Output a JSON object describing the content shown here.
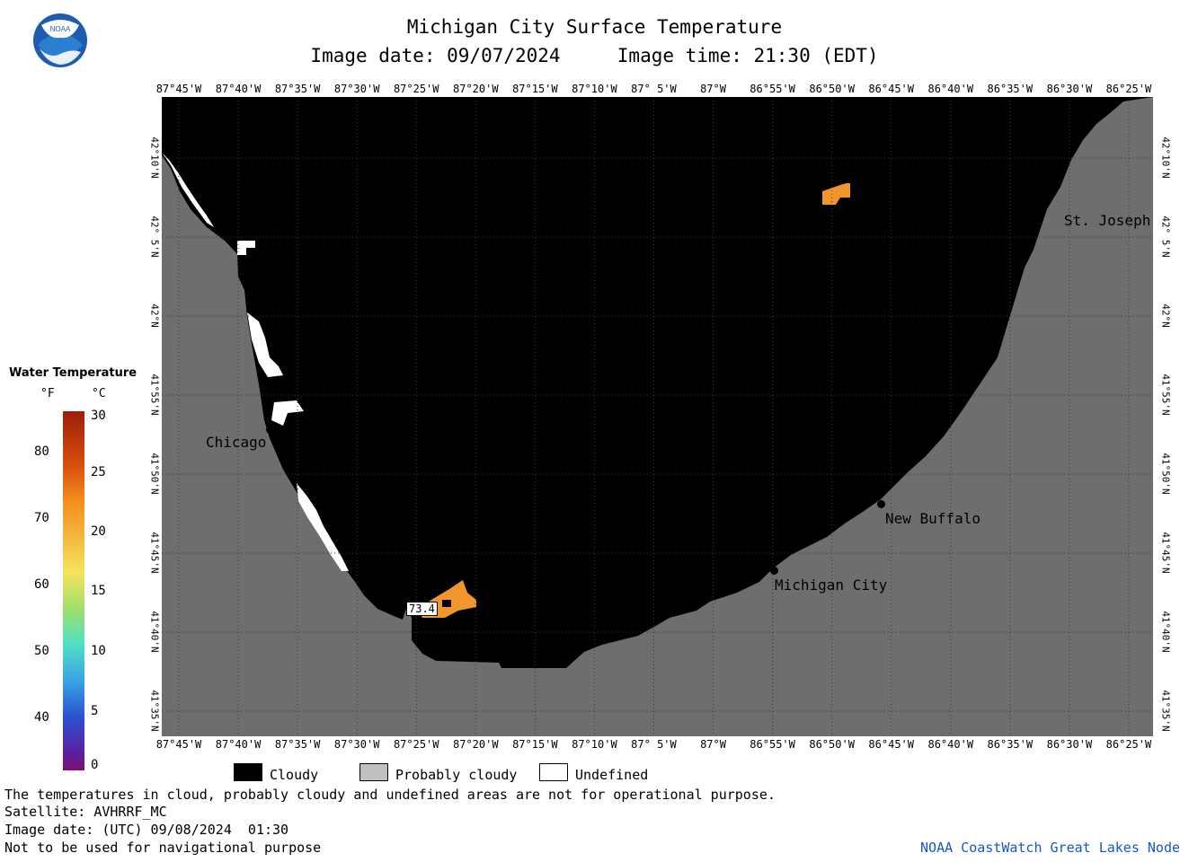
{
  "header": {
    "title": "Michigan City Surface Temperature",
    "subtitle": "Image date: 09/07/2024     Image time: 21:30 (EDT)"
  },
  "logo": {
    "text": "NOAA"
  },
  "map": {
    "lon_labels": [
      "87°45'W",
      "87°40'W",
      "87°35'W",
      "87°30'W",
      "87°25'W",
      "87°20'W",
      "87°15'W",
      "87°10'W",
      "87° 5'W",
      "87°W",
      "86°55'W",
      "86°50'W",
      "86°45'W",
      "86°40'W",
      "86°35'W",
      "86°30'W",
      "86°25'W"
    ],
    "lat_labels": [
      "42°10'N",
      "42° 5'N",
      "42°N",
      "41°55'N",
      "41°50'N",
      "41°45'N",
      "41°40'N",
      "41°35'N"
    ],
    "cities": [
      {
        "name": "Chicago"
      },
      {
        "name": "St. Joseph"
      },
      {
        "name": "New Buffalo"
      },
      {
        "name": "Michigan City"
      }
    ],
    "point_value": "73.4",
    "colors": {
      "cloudy": "#000000",
      "land": "#6e6e6e",
      "undefined": "#ffffff",
      "warm_water": "#f0962c"
    }
  },
  "colorbar": {
    "title": "Water Temperature",
    "unit_f": "°F",
    "unit_c": "°C",
    "f_ticks": [
      "80",
      "70",
      "60",
      "50",
      "40"
    ],
    "c_ticks": [
      "30",
      "25",
      "20",
      "15",
      "10",
      "5",
      "0"
    ]
  },
  "legend": {
    "items": [
      {
        "label": "Cloudy",
        "color": "#000000"
      },
      {
        "label": "Probably cloudy",
        "color": "#c0c0c0"
      },
      {
        "label": "Undefined",
        "color": "#ffffff"
      }
    ]
  },
  "footer": {
    "line1": "The temperatures in cloud, probably cloudy and undefined areas are not for operational purpose.",
    "line2": "Satellite: AVHRRF_MC",
    "line3": "Image date: (UTC) 09/08/2024  01:30",
    "line4": "Not to be used for navigational purpose",
    "credit": "NOAA CoastWatch Great Lakes Node"
  }
}
